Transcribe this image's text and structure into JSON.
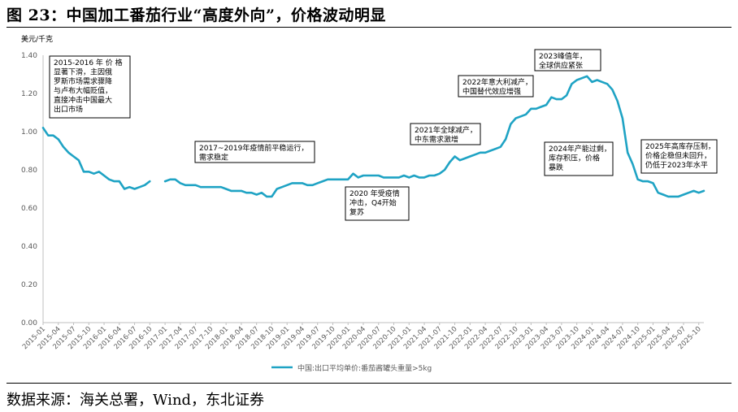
{
  "figure": {
    "title": "图 23：中国加工番茄行业“高度外向”，价格波动明显",
    "source": "数据来源：海关总署，Wind，东北证券"
  },
  "chart_data": {
    "type": "line",
    "ylabel": "美元/千克",
    "ylim": [
      0,
      1.4
    ],
    "yticks": [
      "0.00",
      "0.20",
      "0.40",
      "0.60",
      "0.80",
      "1.00",
      "1.20",
      "1.40"
    ],
    "grid": false,
    "legend_position": "bottom-center",
    "line_color": "#1fa3c4",
    "x_tick_labels": [
      "2015-01",
      "2015-04",
      "2015-07",
      "2015-10",
      "2016-01",
      "2016-04",
      "2016-07",
      "2016-10",
      "2017-01",
      "2017-04",
      "2017-07",
      "2017-10",
      "2018-01",
      "2018-04",
      "2018-07",
      "2018-10",
      "2019-01",
      "2019-04",
      "2019-07",
      "2019-10",
      "2020-01",
      "2020-04",
      "2020-07",
      "2020-10",
      "2021-01",
      "2021-04",
      "2021-07",
      "2021-10",
      "2022-01",
      "2022-04",
      "2022-07",
      "2022-10",
      "2023-01",
      "2023-04",
      "2023-07",
      "2023-10",
      "2024-01",
      "2024-04",
      "2024-07",
      "2024-10",
      "2025-01",
      "2025-04",
      "2025-07",
      "2025-10"
    ],
    "series": [
      {
        "name": "中国:出口平均单价:番茄酱罐头重量>5kg",
        "x": [
          "2015-01",
          "2015-02",
          "2015-03",
          "2015-04",
          "2015-05",
          "2015-06",
          "2015-07",
          "2015-08",
          "2015-09",
          "2015-10",
          "2015-11",
          "2015-12",
          "2016-01",
          "2016-02",
          "2016-03",
          "2016-04",
          "2016-05",
          "2016-06",
          "2016-07",
          "2016-08",
          "2016-09",
          "2016-10",
          "2016-11",
          "2016-12",
          "2017-01",
          "2017-02",
          "2017-03",
          "2017-04",
          "2017-05",
          "2017-06",
          "2017-07",
          "2017-08",
          "2017-09",
          "2017-10",
          "2017-11",
          "2017-12",
          "2018-01",
          "2018-02",
          "2018-03",
          "2018-04",
          "2018-05",
          "2018-06",
          "2018-07",
          "2018-08",
          "2018-09",
          "2018-10",
          "2018-11",
          "2018-12",
          "2019-01",
          "2019-02",
          "2019-03",
          "2019-04",
          "2019-05",
          "2019-06",
          "2019-07",
          "2019-08",
          "2019-09",
          "2019-10",
          "2019-11",
          "2019-12",
          "2020-01",
          "2020-02",
          "2020-03",
          "2020-04",
          "2020-05",
          "2020-06",
          "2020-07",
          "2020-08",
          "2020-09",
          "2020-10",
          "2020-11",
          "2020-12",
          "2021-01",
          "2021-02",
          "2021-03",
          "2021-04",
          "2021-05",
          "2021-06",
          "2021-07",
          "2021-08",
          "2021-09",
          "2021-10",
          "2021-11",
          "2021-12",
          "2022-01",
          "2022-02",
          "2022-03",
          "2022-04",
          "2022-05",
          "2022-06",
          "2022-07",
          "2022-08",
          "2022-09",
          "2022-10",
          "2022-11",
          "2022-12",
          "2023-01",
          "2023-02",
          "2023-03",
          "2023-04",
          "2023-05",
          "2023-06",
          "2023-07",
          "2023-08",
          "2023-09",
          "2023-10",
          "2023-11",
          "2023-12",
          "2024-01",
          "2024-02",
          "2024-03",
          "2024-04",
          "2024-05",
          "2024-06",
          "2024-07",
          "2024-08",
          "2024-09",
          "2024-10",
          "2024-11",
          "2024-12",
          "2025-01",
          "2025-02",
          "2025-03",
          "2025-04",
          "2025-05",
          "2025-06",
          "2025-07",
          "2025-08",
          "2025-09",
          "2025-10",
          "2025-11"
        ],
        "y": [
          1.02,
          0.98,
          0.98,
          0.96,
          0.92,
          0.89,
          0.87,
          0.85,
          0.79,
          0.79,
          0.78,
          0.79,
          0.77,
          0.75,
          0.74,
          0.74,
          0.7,
          0.71,
          0.7,
          0.71,
          0.72,
          0.74,
          null,
          null,
          0.74,
          0.75,
          0.75,
          0.73,
          0.72,
          0.72,
          0.72,
          0.71,
          0.71,
          0.71,
          0.71,
          0.71,
          0.7,
          0.69,
          0.69,
          0.69,
          0.68,
          0.68,
          0.67,
          0.68,
          0.66,
          0.66,
          0.7,
          0.71,
          0.72,
          0.73,
          0.73,
          0.73,
          0.72,
          0.72,
          0.73,
          0.74,
          0.75,
          0.75,
          0.75,
          0.75,
          0.75,
          0.78,
          0.76,
          0.77,
          0.77,
          0.77,
          0.77,
          0.76,
          0.76,
          0.76,
          0.76,
          0.77,
          0.76,
          0.77,
          0.76,
          0.76,
          0.77,
          0.77,
          0.78,
          0.8,
          0.84,
          0.87,
          0.85,
          0.86,
          0.87,
          0.88,
          0.89,
          0.89,
          0.9,
          0.91,
          0.92,
          0.96,
          1.04,
          1.07,
          1.08,
          1.09,
          1.12,
          1.12,
          1.13,
          1.14,
          1.18,
          1.17,
          1.17,
          1.19,
          1.25,
          1.27,
          1.28,
          1.29,
          1.26,
          1.27,
          1.26,
          1.25,
          1.22,
          1.16,
          1.07,
          0.89,
          0.83,
          0.75,
          0.74,
          0.74,
          0.73,
          0.68,
          0.67,
          0.66,
          0.66,
          0.66,
          0.67,
          0.68,
          0.69,
          0.68,
          0.69
        ]
      }
    ],
    "annotations": [
      {
        "lines": [
          "2015-2016 年 价 格",
          "显著下滑，主因俄",
          "罗斯市场需求骤降",
          "与卢布大幅贬值，",
          "直接冲击中国最大",
          "出口市场"
        ]
      },
      {
        "lines": [
          "2017~2019年疫情前平稳运行，",
          "需求稳定"
        ]
      },
      {
        "lines": [
          "2020 年受疫情",
          "冲击，Q4开始",
          "复苏"
        ]
      },
      {
        "lines": [
          "2021年全球减产，",
          "中东需求激增"
        ]
      },
      {
        "lines": [
          "2022年意大利减产，",
          "中国替代效应增强"
        ]
      },
      {
        "lines": [
          "2023峰值年，",
          "全球供应紧张"
        ]
      },
      {
        "lines": [
          "2024年产能过剩，",
          "库存积压，价格",
          "暴跌"
        ]
      },
      {
        "lines": [
          "2025年高库存压制，",
          "价格企稳但未回升，",
          "仍低于2023年水平"
        ]
      }
    ]
  }
}
